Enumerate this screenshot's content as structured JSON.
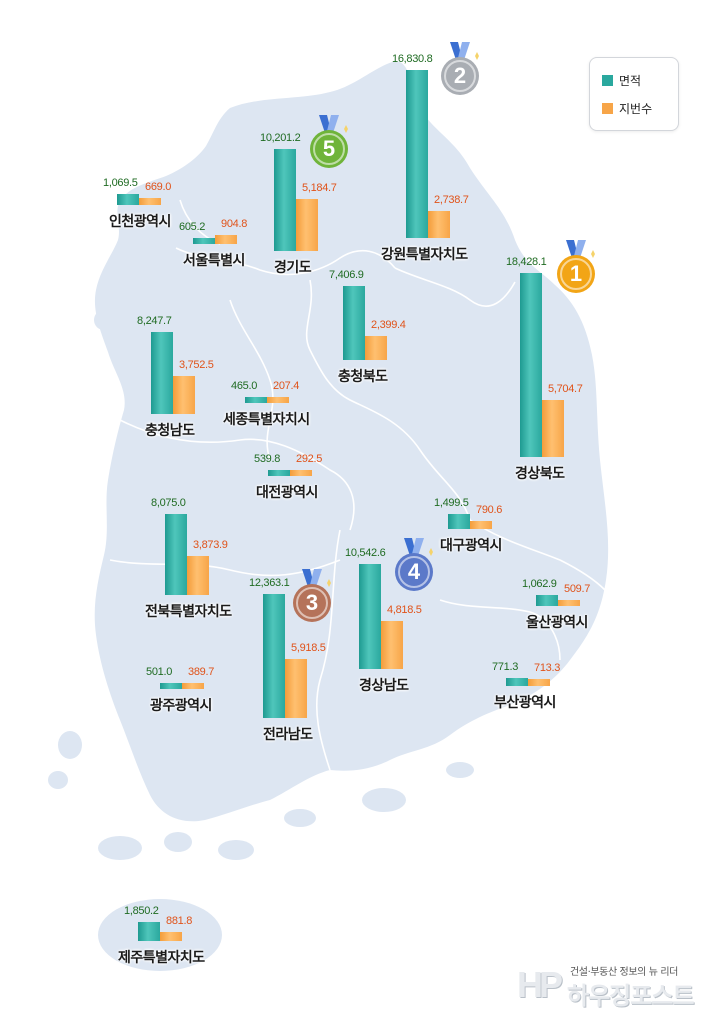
{
  "legend": {
    "area_label": "면적",
    "parcel_label": "지번수",
    "area_color": "#2aa89e",
    "parcel_color": "#f7a548"
  },
  "regions": [
    {
      "name": "인천광역시",
      "area": "1,069.5",
      "parcels": "669.0"
    },
    {
      "name": "서울특별시",
      "area": "605.2",
      "parcels": "904.8"
    },
    {
      "name": "경기도",
      "area": "10,201.2",
      "parcels": "5,184.7",
      "rank": "5"
    },
    {
      "name": "강원특별자치도",
      "area": "16,830.8",
      "parcels": "2,738.7",
      "rank": "2"
    },
    {
      "name": "충청북도",
      "area": "7,406.9",
      "parcels": "2,399.4"
    },
    {
      "name": "경상북도",
      "area": "18,428.1",
      "parcels": "5,704.7",
      "rank": "1"
    },
    {
      "name": "충청남도",
      "area": "8,247.7",
      "parcels": "3,752.5"
    },
    {
      "name": "세종특별자치시",
      "area": "465.0",
      "parcels": "207.4"
    },
    {
      "name": "대전광역시",
      "area": "539.8",
      "parcels": "292.5"
    },
    {
      "name": "대구광역시",
      "area": "1,499.5",
      "parcels": "790.6"
    },
    {
      "name": "전북특별자치도",
      "area": "8,075.0",
      "parcels": "3,873.9"
    },
    {
      "name": "전라남도",
      "area": "12,363.1",
      "parcels": "5,918.5",
      "rank": "3"
    },
    {
      "name": "경상남도",
      "area": "10,542.6",
      "parcels": "4,818.5",
      "rank": "4"
    },
    {
      "name": "울산광역시",
      "area": "1,062.9",
      "parcels": "509.7"
    },
    {
      "name": "광주광역시",
      "area": "501.0",
      "parcels": "389.7"
    },
    {
      "name": "부산광역시",
      "area": "771.3",
      "parcels": "713.3"
    },
    {
      "name": "제주특별자치도",
      "area": "1,850.2",
      "parcels": "881.8"
    }
  ],
  "brand": {
    "tagline": "건설·부동산 정보의 뉴 리더",
    "logo": "HP",
    "name": "하우징포스트"
  },
  "medal_colors": {
    "1": "#f2a516",
    "2": "#a9adb3",
    "3": "#b5735a",
    "4": "#5b79c9",
    "5": "#6fb43a"
  }
}
